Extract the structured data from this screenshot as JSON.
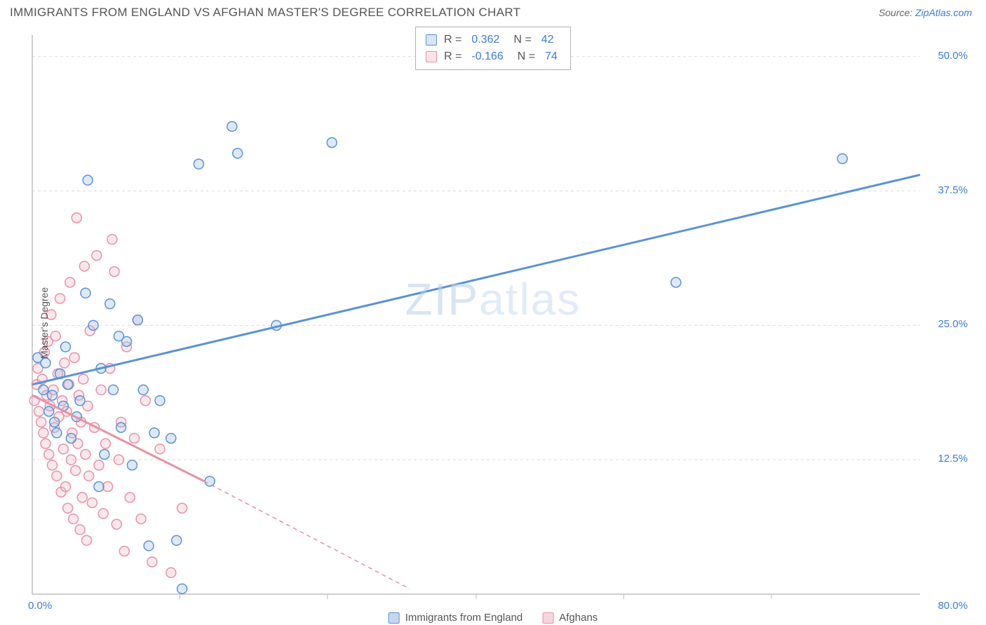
{
  "title": "IMMIGRANTS FROM ENGLAND VS AFGHAN MASTER'S DEGREE CORRELATION CHART",
  "source_label": "Source:",
  "source_name": "ZipAtlas.com",
  "watermark": "ZIPatlas",
  "ylabel": "Master's Degree",
  "chart": {
    "type": "scatter",
    "background_color": "#ffffff",
    "grid_color": "#dcdcdc",
    "axis_color": "#bfbfbf",
    "tick_label_color": "#3b7dd8",
    "tick_fontsize": 15,
    "xlim": [
      0,
      80
    ],
    "ylim": [
      0,
      52
    ],
    "x_ticks": [
      0,
      80
    ],
    "x_tick_labels": [
      "0.0%",
      "80.0%"
    ],
    "y_ticks": [
      12.5,
      25.0,
      37.5,
      50.0
    ],
    "y_tick_labels": [
      "12.5%",
      "25.0%",
      "37.5%",
      "50.0%"
    ],
    "x_tick_minor": [
      13.3,
      26.6,
      40,
      53.3,
      66.6
    ],
    "marker_radius": 7,
    "marker_stroke_width": 1.5,
    "marker_fill_opacity": 0.35,
    "series": [
      {
        "name": "Immigrants from England",
        "color_stroke": "#5a93d6",
        "color_fill": "#9fc0e8",
        "trend": {
          "x1": 0,
          "y1": 19.5,
          "x2": 80,
          "y2": 39.0,
          "stroke_width": 3
        },
        "r_value": "0.362",
        "n_value": "42",
        "points": [
          [
            0.5,
            22
          ],
          [
            1,
            19
          ],
          [
            1.2,
            21.5
          ],
          [
            1.5,
            17
          ],
          [
            1.8,
            18.5
          ],
          [
            2,
            16
          ],
          [
            2.2,
            15
          ],
          [
            2.5,
            20.5
          ],
          [
            2.8,
            17.5
          ],
          [
            3,
            23
          ],
          [
            3.2,
            19.5
          ],
          [
            3.5,
            14.5
          ],
          [
            4,
            16.5
          ],
          [
            4.3,
            18
          ],
          [
            4.8,
            28
          ],
          [
            5,
            38.5
          ],
          [
            5.5,
            25
          ],
          [
            6,
            10
          ],
          [
            6.2,
            21
          ],
          [
            6.5,
            13
          ],
          [
            7,
            27
          ],
          [
            7.3,
            19
          ],
          [
            7.8,
            24
          ],
          [
            8,
            15.5
          ],
          [
            8.5,
            23.5
          ],
          [
            9,
            12
          ],
          [
            9.5,
            25.5
          ],
          [
            10,
            19
          ],
          [
            10.5,
            4.5
          ],
          [
            11,
            15
          ],
          [
            11.5,
            18
          ],
          [
            12.5,
            14.5
          ],
          [
            13,
            5
          ],
          [
            13.5,
            0.5
          ],
          [
            15,
            40
          ],
          [
            16,
            10.5
          ],
          [
            18,
            43.5
          ],
          [
            18.5,
            41
          ],
          [
            22,
            25
          ],
          [
            27,
            42
          ],
          [
            58,
            29
          ],
          [
            73,
            40.5
          ]
        ]
      },
      {
        "name": "Afghans",
        "color_stroke": "#e891a8",
        "color_fill": "#f4bccb",
        "trend_solid": {
          "x1": 0,
          "y1": 18.5,
          "x2": 15.5,
          "y2": 10.5,
          "stroke_width": 3
        },
        "trend_dashed": {
          "x1": 15.5,
          "y1": 10.5,
          "x2": 34,
          "y2": 0.5,
          "stroke_width": 1.5,
          "dash": "6,5"
        },
        "r_value": "-0.166",
        "n_value": "74",
        "points": [
          [
            0.2,
            18
          ],
          [
            0.4,
            19.5
          ],
          [
            0.5,
            21
          ],
          [
            0.6,
            17
          ],
          [
            0.8,
            16
          ],
          [
            0.9,
            20
          ],
          [
            1,
            15
          ],
          [
            1.1,
            22.5
          ],
          [
            1.2,
            14
          ],
          [
            1.3,
            18.5
          ],
          [
            1.4,
            23.5
          ],
          [
            1.5,
            13
          ],
          [
            1.6,
            17.5
          ],
          [
            1.7,
            26
          ],
          [
            1.8,
            12
          ],
          [
            1.9,
            19
          ],
          [
            2,
            15.5
          ],
          [
            2.1,
            24
          ],
          [
            2.2,
            11
          ],
          [
            2.3,
            20.5
          ],
          [
            2.4,
            16.5
          ],
          [
            2.5,
            27.5
          ],
          [
            2.6,
            9.5
          ],
          [
            2.7,
            18
          ],
          [
            2.8,
            13.5
          ],
          [
            2.9,
            21.5
          ],
          [
            3,
            10
          ],
          [
            3.1,
            17
          ],
          [
            3.2,
            8
          ],
          [
            3.3,
            19.5
          ],
          [
            3.4,
            29
          ],
          [
            3.5,
            12.5
          ],
          [
            3.6,
            15
          ],
          [
            3.7,
            7
          ],
          [
            3.8,
            22
          ],
          [
            3.9,
            11.5
          ],
          [
            4,
            35
          ],
          [
            4.1,
            14
          ],
          [
            4.2,
            18.5
          ],
          [
            4.3,
            6
          ],
          [
            4.4,
            16
          ],
          [
            4.5,
            9
          ],
          [
            4.6,
            20
          ],
          [
            4.7,
            30.5
          ],
          [
            4.8,
            13
          ],
          [
            4.9,
            5
          ],
          [
            5,
            17.5
          ],
          [
            5.1,
            11
          ],
          [
            5.2,
            24.5
          ],
          [
            5.4,
            8.5
          ],
          [
            5.6,
            15.5
          ],
          [
            5.8,
            31.5
          ],
          [
            6,
            12
          ],
          [
            6.2,
            19
          ],
          [
            6.4,
            7.5
          ],
          [
            6.6,
            14
          ],
          [
            6.8,
            10
          ],
          [
            7,
            21
          ],
          [
            7.2,
            33
          ],
          [
            7.4,
            30
          ],
          [
            7.6,
            6.5
          ],
          [
            7.8,
            12.5
          ],
          [
            8,
            16
          ],
          [
            8.3,
            4
          ],
          [
            8.5,
            23
          ],
          [
            8.8,
            9
          ],
          [
            9.2,
            14.5
          ],
          [
            9.5,
            25.5
          ],
          [
            9.8,
            7
          ],
          [
            10.2,
            18
          ],
          [
            10.8,
            3
          ],
          [
            11.5,
            13.5
          ],
          [
            12.5,
            2
          ],
          [
            13.5,
            8
          ]
        ]
      }
    ],
    "legend_bottom": [
      {
        "label": "Immigrants from England",
        "stroke": "#5a93d6",
        "fill": "#c3d7ef"
      },
      {
        "label": "Afghans",
        "stroke": "#e891a8",
        "fill": "#f7d5de"
      }
    ]
  }
}
